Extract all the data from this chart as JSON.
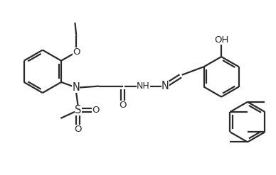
{
  "bg_color": "#ffffff",
  "line_color": "#2a2a2a",
  "text_color": "#2a2a2a",
  "bond_lw": 1.6,
  "figsize": [
    3.88,
    2.47
  ],
  "dpi": 100,
  "xlim": [
    0,
    10
  ],
  "ylim": [
    0,
    6.5
  ]
}
